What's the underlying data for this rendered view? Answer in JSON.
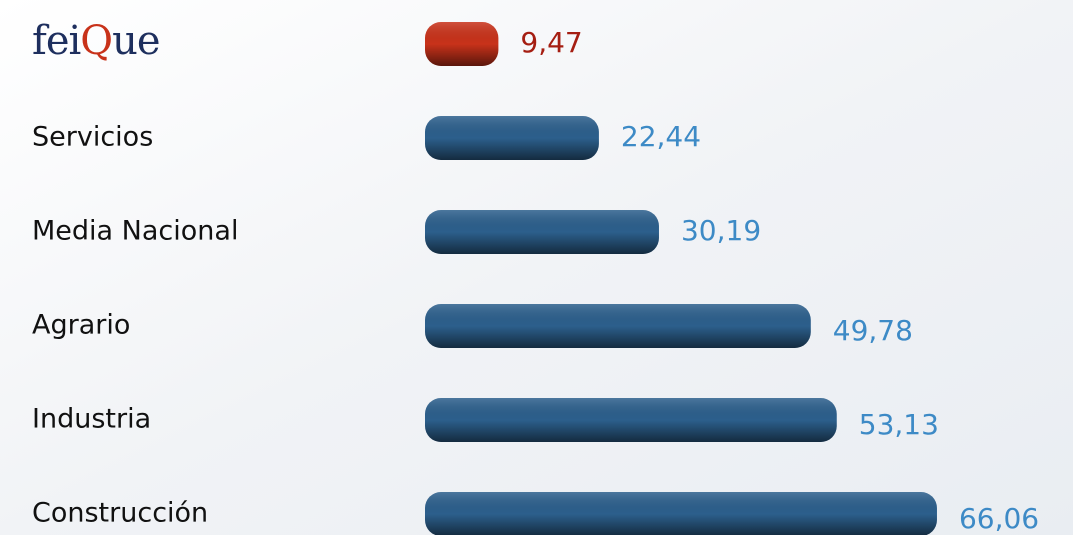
{
  "chart_data": {
    "type": "hbar",
    "categories": [
      "feiQue",
      "Servicios",
      "Media Nacional",
      "Agrario",
      "Industria",
      "Construcción"
    ],
    "values": [
      9.47,
      22.44,
      30.19,
      49.78,
      53.13,
      66.06
    ],
    "value_labels": [
      "9,47",
      "22,44",
      "30,19",
      "49,78",
      "53,13",
      "66,06"
    ],
    "colors": [
      "#c8321a",
      "#2c5f8c",
      "#2c5f8c",
      "#2c5f8c",
      "#2c5f8c",
      "#2c5f8c"
    ],
    "label_colors": [
      "#a51e12",
      "#3d8ac6",
      "#3d8ac6",
      "#3d8ac6",
      "#3d8ac6",
      "#3d8ac6"
    ]
  }
}
